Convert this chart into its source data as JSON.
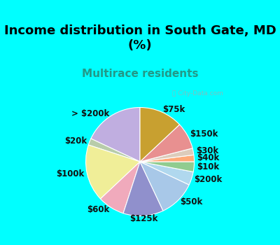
{
  "title": "Income distribution in South Gate, MD\n(%)",
  "subtitle": "Multirace residents",
  "labels": [
    "> $200k",
    "$20k",
    "$100k",
    "$60k",
    "$125k",
    "$50k",
    "$200k",
    "$10k",
    "$40k",
    "$30k",
    "$150k",
    "$75k"
  ],
  "values": [
    18,
    2,
    17,
    8,
    12,
    11,
    4,
    3,
    2,
    2,
    8,
    13
  ],
  "colors": [
    "#c0aee0",
    "#b8ccaa",
    "#f0ee98",
    "#f0aabc",
    "#9090cc",
    "#a8c8e8",
    "#b0d8ee",
    "#90cc90",
    "#ffaa77",
    "#ddccbb",
    "#e89090",
    "#c8a030"
  ],
  "startangle": 90,
  "background_outer": "#00ffff",
  "background_chart_color": "#d0eedd",
  "title_color": "#000000",
  "subtitle_color": "#229988",
  "label_fontsize": 8.5,
  "title_fontsize": 13,
  "subtitle_fontsize": 11
}
